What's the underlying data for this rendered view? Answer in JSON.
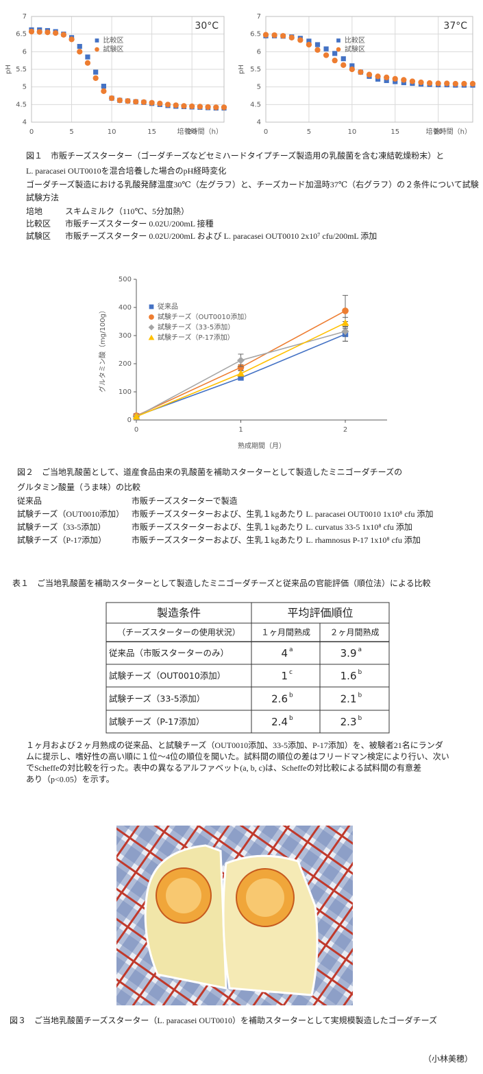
{
  "chart_data": [
    {
      "type": "scatter",
      "annotation": "30°C",
      "x": [
        0,
        1,
        2,
        3,
        4,
        5,
        6,
        7,
        8,
        9,
        10,
        11,
        12,
        13,
        14,
        15,
        16,
        17,
        18,
        19,
        20,
        21,
        22,
        23,
        24
      ],
      "xlim": [
        0,
        24
      ],
      "xticks": [
        0,
        5,
        10,
        15,
        20
      ],
      "ylim": [
        4,
        7
      ],
      "yticks": [
        4,
        4.5,
        5,
        5.5,
        6,
        6.5,
        7
      ],
      "x_label": "培養時間（h）",
      "y_label": "pH",
      "grid": true,
      "legend": "upper center",
      "series": [
        {
          "name": "比較区",
          "color": "#4472c4",
          "marker": "square",
          "values": [
            6.62,
            6.62,
            6.6,
            6.57,
            6.5,
            6.4,
            6.15,
            5.85,
            5.42,
            5.02,
            4.68,
            4.62,
            4.6,
            4.58,
            4.56,
            4.53,
            4.5,
            4.47,
            4.45,
            4.44,
            4.43,
            4.42,
            4.41,
            4.4,
            4.4
          ]
        },
        {
          "name": "試験区",
          "color": "#ed7d31",
          "marker": "circle",
          "values": [
            6.57,
            6.56,
            6.55,
            6.53,
            6.48,
            6.35,
            6.0,
            5.68,
            5.25,
            4.88,
            4.68,
            4.62,
            4.6,
            4.58,
            4.57,
            4.55,
            4.53,
            4.5,
            4.48,
            4.46,
            4.45,
            4.44,
            4.43,
            4.42,
            4.42
          ]
        }
      ]
    },
    {
      "type": "scatter",
      "annotation": "37°C",
      "x": [
        0,
        1,
        2,
        3,
        4,
        5,
        6,
        7,
        8,
        9,
        10,
        11,
        12,
        13,
        14,
        15,
        16,
        17,
        18,
        19,
        20,
        21,
        22,
        23,
        24
      ],
      "xlim": [
        0,
        24
      ],
      "xticks": [
        0,
        5,
        10,
        15,
        20
      ],
      "ylim": [
        4,
        7
      ],
      "yticks": [
        4,
        4.5,
        5,
        5.5,
        6,
        6.5,
        7
      ],
      "x_label": "培養時間（h）",
      "y_label": "pH",
      "grid": true,
      "legend": "upper center",
      "series": [
        {
          "name": "比較区",
          "color": "#4472c4",
          "marker": "square",
          "values": [
            6.45,
            6.45,
            6.44,
            6.42,
            6.38,
            6.3,
            6.2,
            6.08,
            5.95,
            5.8,
            5.6,
            5.42,
            5.3,
            5.22,
            5.18,
            5.15,
            5.12,
            5.1,
            5.08,
            5.07,
            5.06,
            5.06,
            5.05,
            5.05,
            5.05
          ]
        },
        {
          "name": "試験区",
          "color": "#ed7d31",
          "marker": "circle",
          "values": [
            6.48,
            6.47,
            6.45,
            6.4,
            6.33,
            6.2,
            6.05,
            5.9,
            5.75,
            5.62,
            5.5,
            5.42,
            5.35,
            5.3,
            5.27,
            5.23,
            5.2,
            5.16,
            5.13,
            5.11,
            5.1,
            5.1,
            5.09,
            5.09,
            5.09
          ]
        }
      ]
    },
    {
      "type": "line",
      "x": [
        0,
        1,
        2
      ],
      "xlim": [
        0,
        2.4
      ],
      "xticks": [
        0,
        1,
        2
      ],
      "ylim": [
        0,
        500
      ],
      "yticks": [
        0,
        100,
        200,
        300,
        400,
        500
      ],
      "x_label": "熟成期間（月）",
      "y_label": "グルタミン酸（mg/100g）",
      "grid": false,
      "legend": "upper left",
      "series": [
        {
          "name": "従来品",
          "color": "#4472c4",
          "marker": "square",
          "values": [
            14,
            150,
            305
          ],
          "errors": [
            0,
            8,
            25
          ]
        },
        {
          "name": "試験チーズ（OUT0010添加）",
          "color": "#ed7d31",
          "marker": "circle",
          "values": [
            15,
            187,
            388
          ],
          "errors": [
            0,
            10,
            55
          ]
        },
        {
          "name": "試験チーズ（33-5添加）",
          "color": "#a5a5a5",
          "marker": "diamond",
          "values": [
            12,
            212,
            315
          ],
          "errors": [
            0,
            22,
            35
          ]
        },
        {
          "name": "試験チーズ（P-17添加）",
          "color": "#ffc000",
          "marker": "triangle",
          "values": [
            12,
            165,
            345
          ],
          "errors": [
            0,
            10,
            20
          ]
        }
      ]
    }
  ],
  "figure1": {
    "caption": [
      "図１　市販チーズスターター（ゴーダチーズなどセミハードタイプチーズ製造用の乳酸菌を含む凍結乾燥粉末）と",
      "L. paracasei OUT0010を混合培養した場合のpH経時変化",
      "ゴーダチーズ製造における乳酸発酵温度30℃（左グラフ）と、チーズカード加温時37℃（右グラフ）の２条件について試験",
      "試験方法"
    ],
    "rows": [
      [
        "培地",
        "スキムミルク（110℃、5分加熱）"
      ],
      [
        "比較区",
        "市販チーズスターター 0.02U/200mL 接種"
      ],
      [
        "試験区",
        "市販チーズスターター 0.02U/200mL および L. paracasei OUT0010 2x10⁷ cfu/200mL 添加"
      ]
    ]
  },
  "figure2": {
    "caption": [
      "図２　ご当地乳酸菌として、道産食品由来の乳酸菌を補助スターターとして製造したミニゴーダチーズの",
      "グルタミン酸量（うま味）の比較"
    ],
    "rows": [
      [
        "従来品",
        "市販チーズスターターで製造"
      ],
      [
        "試験チーズ（OUT0010添加）",
        "市販チーズスターターおよび、生乳１kgあたり L. paracasei OUT0010 1x10⁸ cfu 添加"
      ],
      [
        "試験チーズ（33-5添加）",
        "市販チーズスターターおよび、生乳１kgあたり L. curvatus 33-5 1x10⁸ cfu 添加"
      ],
      [
        "試験チーズ（P-17添加）",
        "市販チーズスターターおよび、生乳１kgあたり L. rhamnosus P-17 1x10⁸ cfu 添加"
      ]
    ]
  },
  "table1": {
    "title": "表１　ご当地乳酸菌を補助スターターとして製造したミニゴーダチーズと従来品の官能評価（順位法）による比較",
    "header": [
      "製造条件",
      "平均評価順位"
    ],
    "subheader": [
      "（チーズスターターの使用状況）",
      "１ヶ月間熟成",
      "２ヶ月間熟成"
    ],
    "rows": [
      [
        "従来品（市販スターターのみ）",
        "4",
        "a",
        "3.9",
        "a"
      ],
      [
        "試験チーズ（OUT0010添加）",
        "1",
        "c",
        "1.6",
        "b"
      ],
      [
        "試験チーズ（33-5添加）",
        "2.6",
        "b",
        "2.1",
        "b"
      ],
      [
        "試験チーズ（P-17添加）",
        "2.4",
        "b",
        "2.3",
        "b"
      ]
    ],
    "note": [
      "１ヶ月および２ヶ月熟成の従来品、と試験チーズ（OUT0010添加、33-5添加、P-17添加）を、被験者21名にランダ",
      "ムに提示し、嗜好性の高い順に１位～4位の順位を聞いた。試料間の順位の差はフリードマン検定により行い、次い",
      "でScheffeの対比較を行った。表中の異なるアルファベット(a, b, c)は、Scheffeの対比較による試料間の有意差",
      "あり（p<0.05）を示す。"
    ]
  },
  "figure3": {
    "caption": "図３　ご当地乳酸菌チーズスターター（L. paracasei OUT0010）を補助スターターとして実規模製造したゴーダチーズ"
  },
  "author": "（小林美穂）"
}
